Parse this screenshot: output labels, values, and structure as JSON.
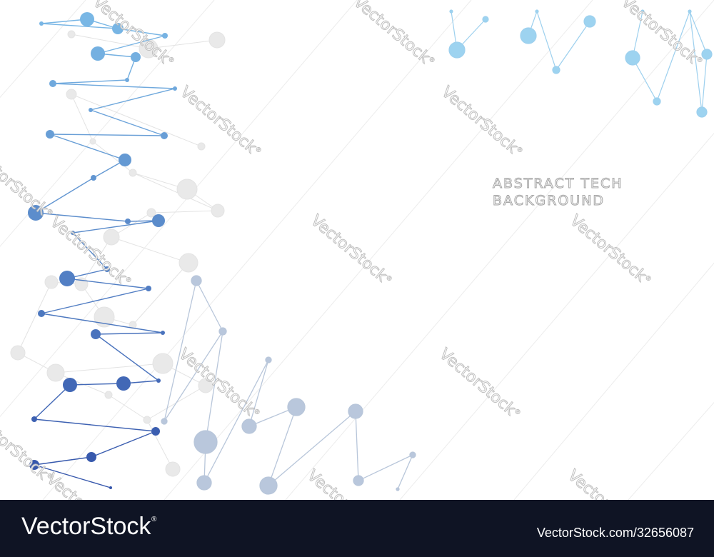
{
  "artwork": {
    "title_line_1": "ABSTRACT TECH",
    "title_line_2": "BACKGROUND",
    "watermark_text": "VectorStock",
    "colors": {
      "background": "#ffffff",
      "node_dark": "#3b5eb4",
      "node_mid": "#5d86cf",
      "node_light": "#7ab8e6",
      "node_pale": "#aebed6",
      "node_ghost": "#e6e6e6",
      "title_outline": "#a6a6a6"
    }
  },
  "footer": {
    "brand": "VectorStock",
    "brand_mark": "®",
    "image_ref": "VectorStock.com/32656087",
    "background": "#0f1424"
  }
}
